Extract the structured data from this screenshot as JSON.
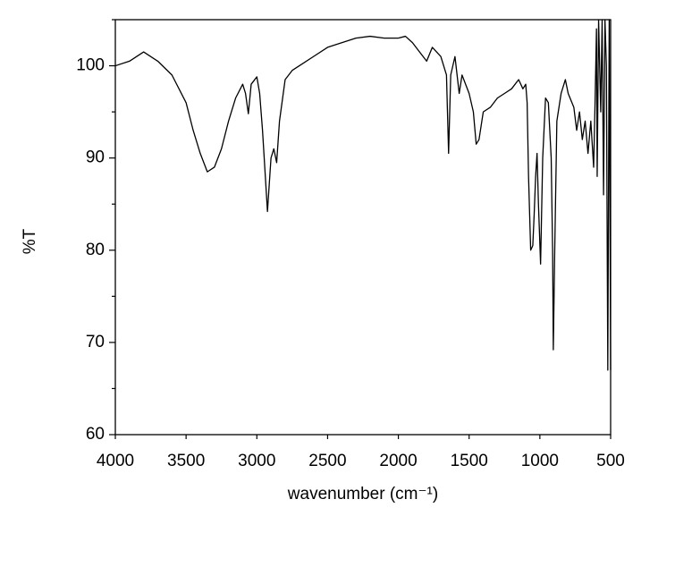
{
  "chart_data": {
    "type": "line",
    "xlabel": "wavenumber (cm⁻¹)",
    "ylabel": "%T",
    "xlim": [
      4000,
      500
    ],
    "xticks": [
      4000,
      3500,
      3000,
      2500,
      2000,
      1500,
      1000,
      500
    ],
    "ylim": [
      60,
      105
    ],
    "yticks": [
      60,
      70,
      80,
      90,
      100
    ],
    "minor_yticks": [
      65,
      75,
      85,
      95,
      105
    ],
    "grid": false,
    "series": [
      {
        "color": "#000000",
        "x": [
          4000,
          3900,
          3800,
          3700,
          3600,
          3500,
          3450,
          3400,
          3350,
          3300,
          3250,
          3200,
          3150,
          3100,
          3080,
          3060,
          3040,
          3000,
          2980,
          2960,
          2940,
          2925,
          2900,
          2880,
          2860,
          2840,
          2800,
          2750,
          2700,
          2600,
          2500,
          2400,
          2300,
          2200,
          2100,
          2000,
          1950,
          1900,
          1850,
          1800,
          1760,
          1700,
          1660,
          1645,
          1630,
          1600,
          1570,
          1550,
          1500,
          1470,
          1450,
          1430,
          1400,
          1350,
          1300,
          1250,
          1200,
          1150,
          1120,
          1100,
          1090,
          1080,
          1065,
          1050,
          1040,
          1030,
          1020,
          1010,
          995,
          980,
          960,
          940,
          920,
          910,
          905,
          895,
          880,
          850,
          820,
          800,
          760,
          740,
          720,
          700,
          680,
          660,
          640,
          620,
          610,
          600,
          595,
          585,
          570,
          560,
          550,
          540,
          530,
          520,
          510,
          500
        ],
        "values": [
          100,
          100.5,
          101.5,
          100.5,
          99,
          96,
          93,
          90.5,
          88.5,
          89,
          91,
          94,
          96.5,
          98,
          97,
          94.8,
          98,
          98.8,
          97,
          93,
          88,
          84.2,
          90,
          91,
          89.5,
          94,
          98.5,
          99.5,
          100,
          101,
          102,
          102.5,
          103,
          103.2,
          103,
          103,
          103.2,
          102.5,
          101.5,
          100.5,
          102,
          101,
          99,
          90.5,
          99,
          101,
          97,
          99,
          97,
          95,
          91.5,
          92,
          95,
          95.5,
          96.5,
          97,
          97.5,
          98.5,
          97.5,
          98,
          96,
          88,
          80,
          80.5,
          84,
          88,
          90.5,
          85,
          78.5,
          90,
          96.5,
          96,
          90,
          80,
          69.2,
          80,
          94,
          97,
          98.5,
          97,
          95.5,
          93,
          95,
          92,
          94,
          90.5,
          94,
          89,
          96,
          104,
          88,
          105,
          95,
          105,
          86,
          105,
          100,
          67,
          105,
          67
        ]
      }
    ]
  }
}
